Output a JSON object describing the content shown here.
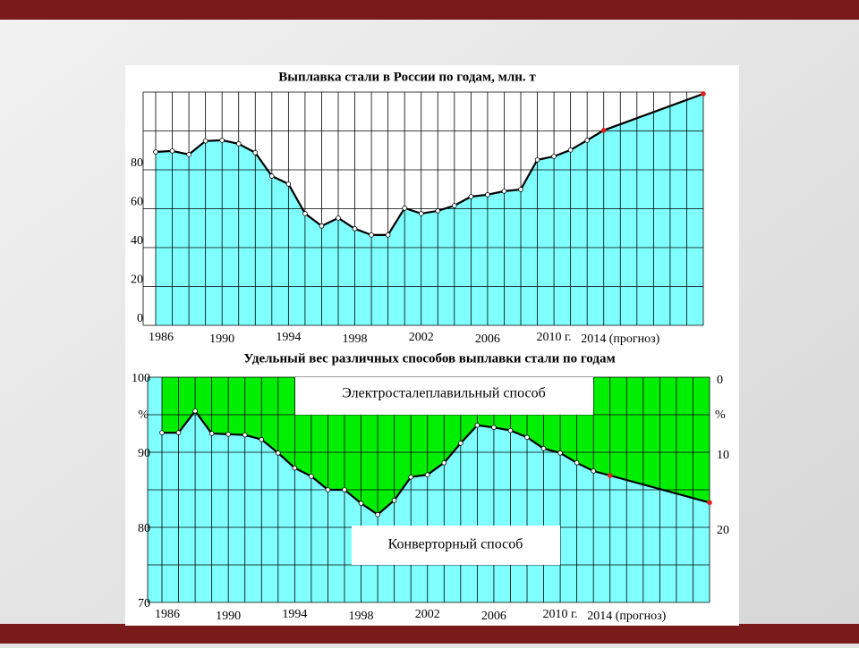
{
  "chart_data": [
    {
      "type": "area",
      "title": "Выплавка стали в России по годам, млн. т",
      "x": [
        1986,
        1987,
        1988,
        1989,
        1990,
        1991,
        1992,
        1993,
        1994,
        1995,
        1996,
        1997,
        1998,
        1999,
        2000,
        2001,
        2002,
        2003,
        2004,
        2005,
        2006,
        2007,
        2008,
        2009,
        2010,
        2011,
        2012,
        2013,
        2019
      ],
      "values": [
        89.2,
        89.7,
        87.9,
        94.8,
        95.2,
        93.4,
        88.8,
        76.8,
        72.7,
        57.5,
        51.1,
        55.2,
        49.7,
        46.5,
        46.5,
        60.3,
        57.5,
        58.9,
        61.6,
        66.2,
        67.2,
        69,
        69.9,
        85.1,
        86.9,
        90.2,
        95.2,
        100.3,
        119.1
      ],
      "fill_color": "#80ffff",
      "line_color": "#000000",
      "highlight_points": [
        2013,
        2019
      ],
      "highlight_color": "#e02020",
      "xlim": [
        1986,
        2019
      ],
      "xticks": [
        1986,
        1990,
        1994,
        1998,
        2002,
        2006,
        {
          "value": 2010,
          "label": "2010 г."
        },
        {
          "value": 2014,
          "label": "2014 (прогноз)"
        }
      ],
      "xgrid_step": 1,
      "ylim": [
        0,
        120
      ],
      "yticks": [
        0,
        20,
        40,
        60,
        80
      ],
      "ygrid": [
        0,
        20,
        40,
        60,
        80,
        100,
        120
      ]
    },
    {
      "type": "split_area",
      "title": "Удельный вес различных способов выплавки стали по годам",
      "x": [
        1986,
        1987,
        1988,
        1989,
        1990,
        1991,
        1992,
        1993,
        1994,
        1995,
        1996,
        1997,
        1998,
        1999,
        2000,
        2001,
        2002,
        2003,
        2004,
        2005,
        2006,
        2007,
        2008,
        2009,
        2010,
        2011,
        2012,
        2013,
        2019
      ],
      "values": [
        92.6,
        92.6,
        95.5,
        92.5,
        92.4,
        92.3,
        91.7,
        89.9,
        87.9,
        86.8,
        85,
        85,
        83.2,
        81.7,
        83.6,
        86.7,
        87,
        88.6,
        91.2,
        93.6,
        93.3,
        92.9,
        92,
        90.5,
        89.9,
        88.6,
        87.5,
        86.9,
        83.3
      ],
      "upper_label": "Электросталеплавильный способ",
      "lower_label": "Конверторный способ",
      "fill_below": "#80ffff",
      "fill_above": "#00ee00",
      "line_color": "#000000",
      "highlight_points": [
        2013,
        2019
      ],
      "highlight_color": "#e02020",
      "xlim": [
        1986,
        2019
      ],
      "xticks": [
        1986,
        1990,
        1994,
        1998,
        2002,
        2006,
        {
          "value": 2010,
          "label": "2010 г."
        },
        {
          "value": 2014,
          "label": "2014 (прогноз)"
        }
      ],
      "xgrid_step": 1,
      "ylim": [
        70,
        100
      ],
      "yticks": [
        70,
        80,
        90,
        100
      ],
      "ygrid": [
        70,
        75,
        80,
        85,
        90,
        95,
        100
      ],
      "y_unit": "%",
      "y2lim": [
        30,
        0
      ],
      "y2ticks": [
        0,
        10,
        20
      ],
      "y2_unit": "%"
    }
  ]
}
